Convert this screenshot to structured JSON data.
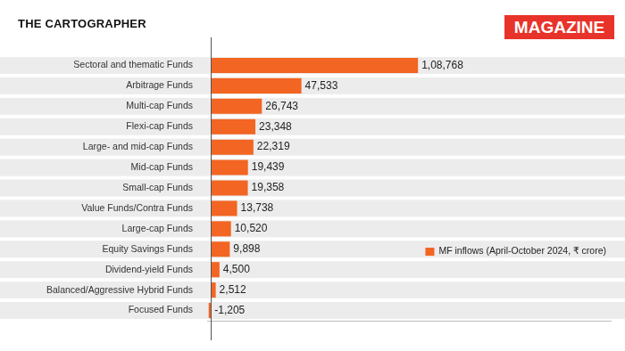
{
  "chart_data": {
    "type": "bar",
    "title": "THE CARTOGRAPHER",
    "annotations": [
      "MAGAZINE"
    ],
    "orientation": "horizontal",
    "categories": [
      "Sectoral and thematic Funds",
      "Arbitrage Funds",
      "Multi-cap Funds",
      "Flexi-cap Funds",
      "Large- and mid-cap Funds",
      "Mid-cap Funds",
      "Small-cap Funds",
      "Value Funds/Contra Funds",
      "Large-cap Funds",
      "Equity Savings Funds",
      "Dividend-yield Funds",
      "Balanced/Aggressive Hybrid Funds",
      "Focused Funds"
    ],
    "series": [
      {
        "name": "MF inflows (April-October 2024, ₹ crore)",
        "color": "#f26522",
        "values": [
          108768,
          47533,
          26743,
          23348,
          22319,
          19439,
          19358,
          13738,
          10520,
          9898,
          4500,
          2512,
          -1205
        ],
        "value_labels": [
          "1,08,768",
          "47,533",
          "26,743",
          "23,348",
          "22,319",
          "19,439",
          "19,358",
          "13,738",
          "10,520",
          "9,898",
          "4,500",
          "2,512",
          "-1,205"
        ]
      }
    ],
    "xlim": [
      -2000,
      210000
    ],
    "xticks": [],
    "grid": false,
    "legend": "right",
    "data_labels": true,
    "tick_labels": "y"
  }
}
